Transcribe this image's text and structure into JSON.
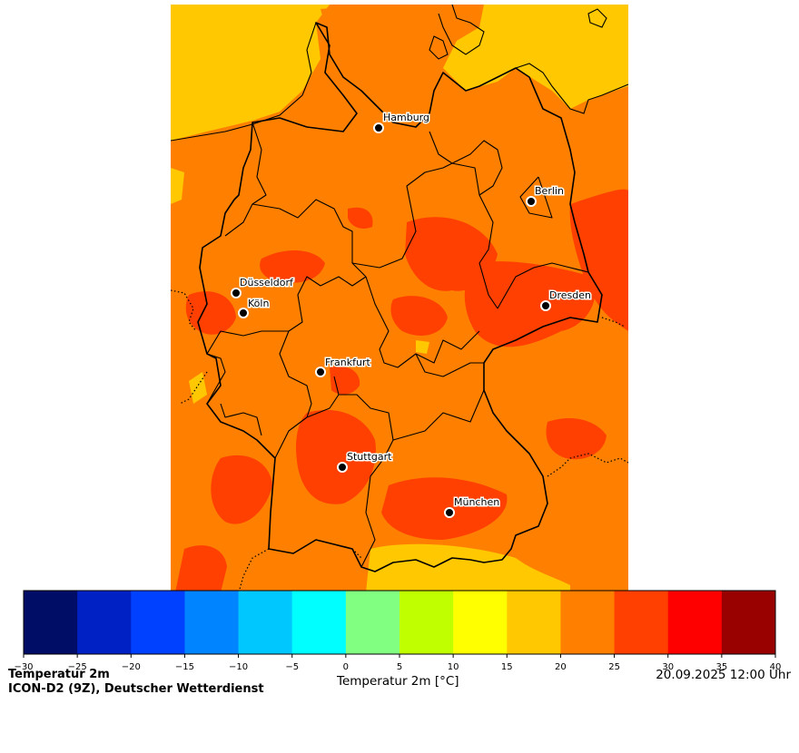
{
  "title": "Temperatur 2m",
  "source": "ICON-D2 (9Z), Deutscher Wetterdienst",
  "timestamp": "20.09.2025 12:00 Uhr",
  "colorbar": {
    "label": "Temperatur 2m [°C]",
    "ticks": [
      "−30",
      "−25",
      "−20",
      "−15",
      "−10",
      "−5",
      "0",
      "5",
      "10",
      "15",
      "20",
      "25",
      "30",
      "35",
      "40"
    ],
    "colors": [
      "#000d66",
      "#0022c4",
      "#0040ff",
      "#0084ff",
      "#00c8ff",
      "#00ffff",
      "#80ff80",
      "#c0ff00",
      "#ffff00",
      "#ffc800",
      "#ff8000",
      "#ff4000",
      "#ff0000",
      "#990000"
    ]
  },
  "cities": [
    {
      "name": "Hamburg"
    },
    {
      "name": "Berlin"
    },
    {
      "name": "Düsseldorf"
    },
    {
      "name": "Köln"
    },
    {
      "name": "Dresden"
    },
    {
      "name": "Frankfurt"
    },
    {
      "name": "Stuttgart"
    },
    {
      "name": "München"
    }
  ],
  "map_colors": {
    "sea": "#ffc800",
    "land_20_25": "#ff8000",
    "land_25_30": "#ff4000",
    "land_15_20": "#ffc800",
    "border": "#000000"
  }
}
